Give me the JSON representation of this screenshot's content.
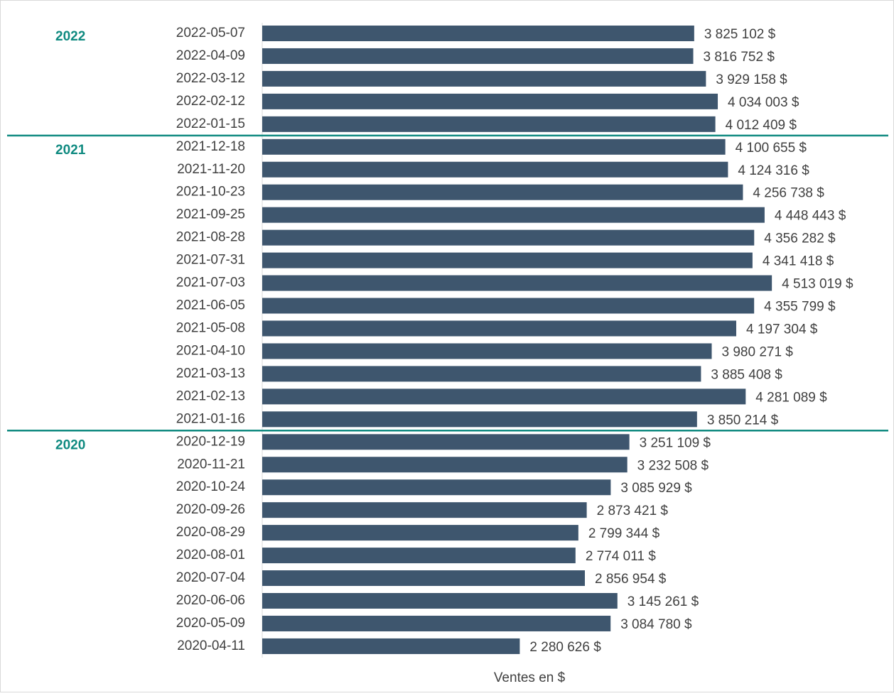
{
  "chart_data": {
    "type": "bar",
    "orientation": "horizontal",
    "x_label": "Ventes en $",
    "color": "#3e566e",
    "group_color": "#0f8a80",
    "groups": [
      "2022",
      "2021",
      "2020"
    ],
    "xlim": [
      0,
      5500000
    ],
    "categories": [
      "2022-05-07",
      "2022-04-09",
      "2022-03-12",
      "2022-02-12",
      "2022-01-15",
      "2021-12-18",
      "2021-11-20",
      "2021-10-23",
      "2021-09-25",
      "2021-08-28",
      "2021-07-31",
      "2021-07-03",
      "2021-06-05",
      "2021-05-08",
      "2021-04-10",
      "2021-03-13",
      "2021-02-13",
      "2021-01-16",
      "2020-12-19",
      "2020-11-21",
      "2020-10-24",
      "2020-09-26",
      "2020-08-29",
      "2020-08-01",
      "2020-07-04",
      "2020-06-06",
      "2020-05-09",
      "2020-04-11"
    ],
    "values": [
      3825102,
      3816752,
      3929158,
      4034003,
      4012409,
      4100655,
      4124316,
      4256738,
      4448443,
      4356282,
      4341418,
      4513019,
      4355799,
      4197304,
      3980271,
      3885408,
      4281089,
      3850214,
      3251109,
      3232508,
      3085929,
      2873421,
      2799344,
      2774011,
      2856954,
      3145261,
      3084780,
      2280626
    ],
    "value_labels": [
      "3 825 102 $",
      "3 816 752 $",
      "3 929 158 $",
      "4 034 003 $",
      "4 012 409 $",
      "4 100 655 $",
      "4 124 316 $",
      "4 256 738 $",
      "4 448 443 $",
      "4 356 282 $",
      "4 341 418 $",
      "4 513 019 $",
      "4 355 799 $",
      "4 197 304 $",
      "3 980 271 $",
      "3 885 408 $",
      "4 281 089 $",
      "3 850 214 $",
      "3 251 109 $",
      "3 232 508 $",
      "3 085 929 $",
      "2 873 421 $",
      "2 799 344 $",
      "2 774 011 $",
      "2 856 954 $",
      "3 145 261 $",
      "3 084 780 $",
      "2 280 626 $"
    ]
  }
}
